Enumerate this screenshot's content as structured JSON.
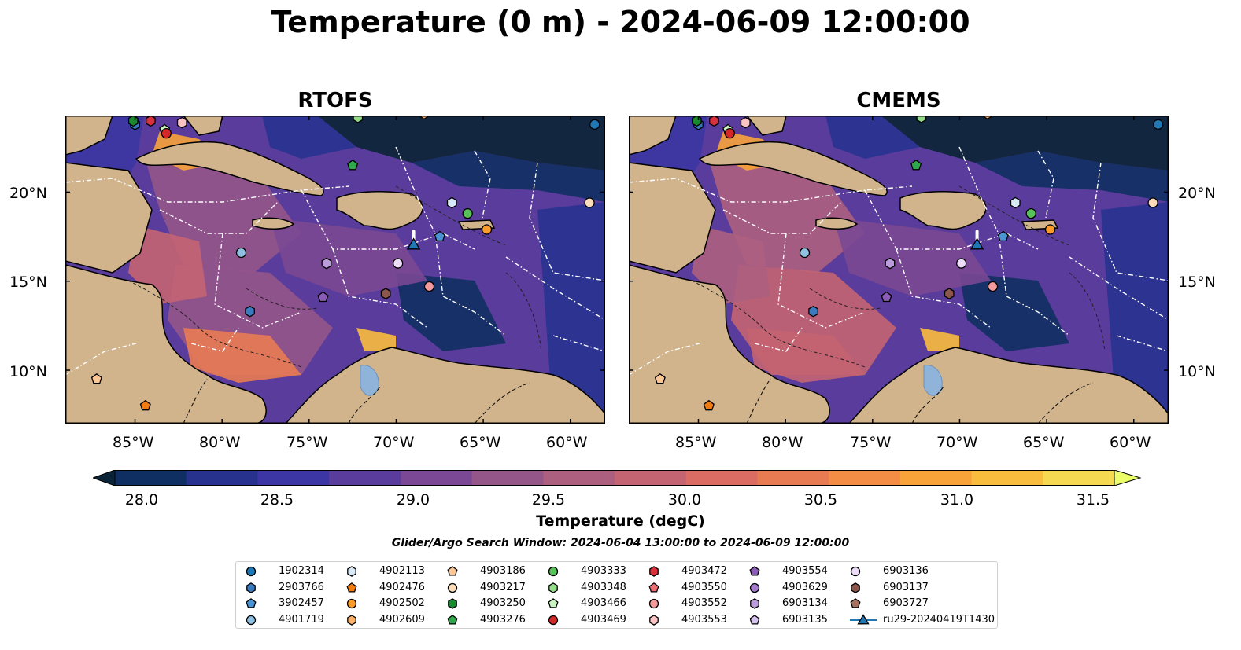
{
  "title": "Temperature (0 m) - 2024-06-09 12:00:00",
  "panels": [
    {
      "title": "RTOFS",
      "model": "rtofs"
    },
    {
      "title": "CMEMS",
      "model": "cmems"
    }
  ],
  "axes": {
    "x_ticks": [
      "85°W",
      "80°W",
      "75°W",
      "70°W",
      "65°W",
      "60°W"
    ],
    "y_ticks": [
      "20°N",
      "15°N",
      "10°N"
    ],
    "lon_range": [
      -89,
      -58
    ],
    "lat_range": [
      7,
      24.3
    ]
  },
  "colorbar": {
    "label": "Temperature (degC)",
    "ticks": [
      "28.0",
      "28.5",
      "29.0",
      "29.5",
      "30.0",
      "30.5",
      "31.0",
      "31.5"
    ],
    "range": [
      28.0,
      31.5
    ],
    "extend": "both",
    "colors": [
      "#0b2336",
      "#0f2f62",
      "#27328f",
      "#3b36a3",
      "#5a3c9c",
      "#7a4894",
      "#945589",
      "#ad5f7f",
      "#c46472",
      "#da6c63",
      "#e97b53",
      "#f38d45",
      "#f8a23a",
      "#f9bd3e",
      "#f4d951",
      "#ecfd6a"
    ]
  },
  "search_window": "Glider/Argo Search Window: 2024-06-04 13:00:00 to 2024-06-09 12:00:00",
  "legend": [
    {
      "label": "1902314",
      "marker": "circle",
      "color": "#1f77b4"
    },
    {
      "label": "2903766",
      "marker": "hexagon",
      "color": "#3a7bbf"
    },
    {
      "label": "3902457",
      "marker": "pentagon",
      "color": "#4c93d4"
    },
    {
      "label": "4901719",
      "marker": "circle",
      "color": "#8fc1e3"
    },
    {
      "label": "4902113",
      "marker": "hexagon",
      "color": "#d7e9f7"
    },
    {
      "label": "4902476",
      "marker": "pentagon",
      "color": "#f07c12"
    },
    {
      "label": "4902502",
      "marker": "circle",
      "color": "#fb9b2b"
    },
    {
      "label": "4902609",
      "marker": "hexagon",
      "color": "#fdb06a"
    },
    {
      "label": "4903186",
      "marker": "pentagon",
      "color": "#fcc796"
    },
    {
      "label": "4903217",
      "marker": "circle",
      "color": "#fddcb9"
    },
    {
      "label": "4903250",
      "marker": "hexagon",
      "color": "#1a8a2e"
    },
    {
      "label": "4903276",
      "marker": "pentagon",
      "color": "#2ea84a"
    },
    {
      "label": "4903333",
      "marker": "circle",
      "color": "#59c15a"
    },
    {
      "label": "4903348",
      "marker": "hexagon",
      "color": "#93dd8a"
    },
    {
      "label": "4903466",
      "marker": "pentagon",
      "color": "#c9f2c0"
    },
    {
      "label": "4903469",
      "marker": "circle",
      "color": "#d62728"
    },
    {
      "label": "4903472",
      "marker": "hexagon",
      "color": "#d8313b"
    },
    {
      "label": "4903550",
      "marker": "pentagon",
      "color": "#ea6f76"
    },
    {
      "label": "4903552",
      "marker": "circle",
      "color": "#f59a9c"
    },
    {
      "label": "4903553",
      "marker": "hexagon",
      "color": "#fcc3c4"
    },
    {
      "label": "4903554",
      "marker": "pentagon",
      "color": "#8a5cb5"
    },
    {
      "label": "4903629",
      "marker": "circle",
      "color": "#a47bcc"
    },
    {
      "label": "6903134",
      "marker": "hexagon",
      "color": "#bb9ddd"
    },
    {
      "label": "6903135",
      "marker": "pentagon",
      "color": "#d5c0ee"
    },
    {
      "label": "6903136",
      "marker": "circle",
      "color": "#ecdcf8"
    },
    {
      "label": "6903137",
      "marker": "hexagon",
      "color": "#8c564b"
    },
    {
      "label": "6903727",
      "marker": "pentagon",
      "color": "#a9715f"
    },
    {
      "label": "ru29-20240419T1430",
      "marker": "triangle",
      "color": "#1f77b4"
    }
  ],
  "map_markers": [
    {
      "label": "1902314",
      "lon": -58.6,
      "lat": 23.8
    },
    {
      "label": "2903766",
      "lon": -85.0,
      "lat": 23.8
    },
    {
      "label": "4902609",
      "lon": -68.4,
      "lat": 24.4
    },
    {
      "label": "4903472",
      "lon": -84.1,
      "lat": 24.0
    },
    {
      "label": "4903553",
      "lon": -82.3,
      "lat": 23.9
    },
    {
      "label": "4903348",
      "lon": -72.2,
      "lat": 24.2
    },
    {
      "label": "4903250",
      "lon": -85.1,
      "lat": 24.0
    },
    {
      "label": "4903466",
      "lon": -83.3,
      "lat": 23.5
    },
    {
      "label": "4903469",
      "lon": -83.2,
      "lat": 23.3
    },
    {
      "label": "4903276",
      "lon": -72.5,
      "lat": 21.5
    },
    {
      "label": "4902113",
      "lon": -66.8,
      "lat": 19.4
    },
    {
      "label": "4903333",
      "lon": -65.9,
      "lat": 18.8
    },
    {
      "label": "4903217",
      "lon": -58.9,
      "lat": 19.4
    },
    {
      "label": "4902502",
      "lon": -64.8,
      "lat": 17.9
    },
    {
      "label": "3902457",
      "lon": -67.5,
      "lat": 17.5
    },
    {
      "label": "4901719",
      "lon": -78.9,
      "lat": 16.6
    },
    {
      "label": "6903134",
      "lon": -74.0,
      "lat": 16.0
    },
    {
      "label": "6903136",
      "lon": -69.9,
      "lat": 16.0
    },
    {
      "label": "4903552",
      "lon": -68.1,
      "lat": 14.7
    },
    {
      "label": "4903554",
      "lon": -74.2,
      "lat": 14.1
    },
    {
      "label": "6903137",
      "lon": -70.6,
      "lat": 14.3
    },
    {
      "label": "2903766",
      "lon": -78.4,
      "lat": 13.3
    },
    {
      "label": "4903186",
      "lon": -87.2,
      "lat": 9.5
    },
    {
      "label": "4902476",
      "lon": -84.4,
      "lat": 8.0
    }
  ],
  "glider_position": {
    "label": "ru29-20240419T1430",
    "lon": -69.0,
    "lat": 17.0
  }
}
